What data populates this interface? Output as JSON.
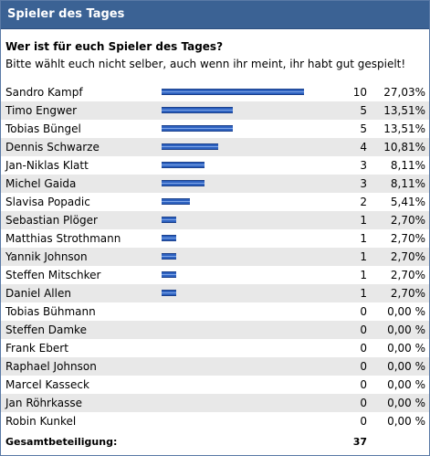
{
  "header": {
    "title": "Spieler des Tages"
  },
  "poll": {
    "question": "Wer ist für euch Spieler des Tages?",
    "description": "Bitte wählt euch nicht selber, auch wenn ihr meint, ihr habt gut gespielt!",
    "options": [
      {
        "name": "Sandro Kampf",
        "votes": "10",
        "percent": "27,03%",
        "fraction": 1.0
      },
      {
        "name": "Timo Engwer",
        "votes": "5",
        "percent": "13,51%",
        "fraction": 0.5
      },
      {
        "name": "Tobias Büngel",
        "votes": "5",
        "percent": "13,51%",
        "fraction": 0.5
      },
      {
        "name": "Dennis Schwarze",
        "votes": "4",
        "percent": "10,81%",
        "fraction": 0.4
      },
      {
        "name": "Jan-Niklas Klatt",
        "votes": "3",
        "percent": "8,11%",
        "fraction": 0.3
      },
      {
        "name": "Michel Gaida",
        "votes": "3",
        "percent": "8,11%",
        "fraction": 0.3
      },
      {
        "name": "Slavisa Popadic",
        "votes": "2",
        "percent": "5,41%",
        "fraction": 0.2
      },
      {
        "name": "Sebastian Plöger",
        "votes": "1",
        "percent": "2,70%",
        "fraction": 0.1
      },
      {
        "name": "Matthias Strothmann",
        "votes": "1",
        "percent": "2,70%",
        "fraction": 0.1
      },
      {
        "name": "Yannik Johnson",
        "votes": "1",
        "percent": "2,70%",
        "fraction": 0.1
      },
      {
        "name": "Steffen Mitschker",
        "votes": "1",
        "percent": "2,70%",
        "fraction": 0.1
      },
      {
        "name": "Daniel Allen",
        "votes": "1",
        "percent": "2,70%",
        "fraction": 0.1
      },
      {
        "name": "Tobias Bühmann",
        "votes": "0",
        "percent": "0,00 %",
        "fraction": 0
      },
      {
        "name": "Steffen Damke",
        "votes": "0",
        "percent": "0,00 %",
        "fraction": 0
      },
      {
        "name": "Frank Ebert",
        "votes": "0",
        "percent": "0,00 %",
        "fraction": 0
      },
      {
        "name": "Raphael Johnson",
        "votes": "0",
        "percent": "0,00 %",
        "fraction": 0
      },
      {
        "name": "Marcel Kasseck",
        "votes": "0",
        "percent": "0,00 %",
        "fraction": 0
      },
      {
        "name": "Jan Röhrkasse",
        "votes": "0",
        "percent": "0,00 %",
        "fraction": 0
      },
      {
        "name": "Robin Kunkel",
        "votes": "0",
        "percent": "0,00 %",
        "fraction": 0
      }
    ],
    "total_label": "Gesamtbeteiligung:",
    "total_value": "37"
  },
  "colors": {
    "header_bg": "#3b6294",
    "bar": "#2e62c0",
    "alt_row": "#e8e8e8"
  }
}
